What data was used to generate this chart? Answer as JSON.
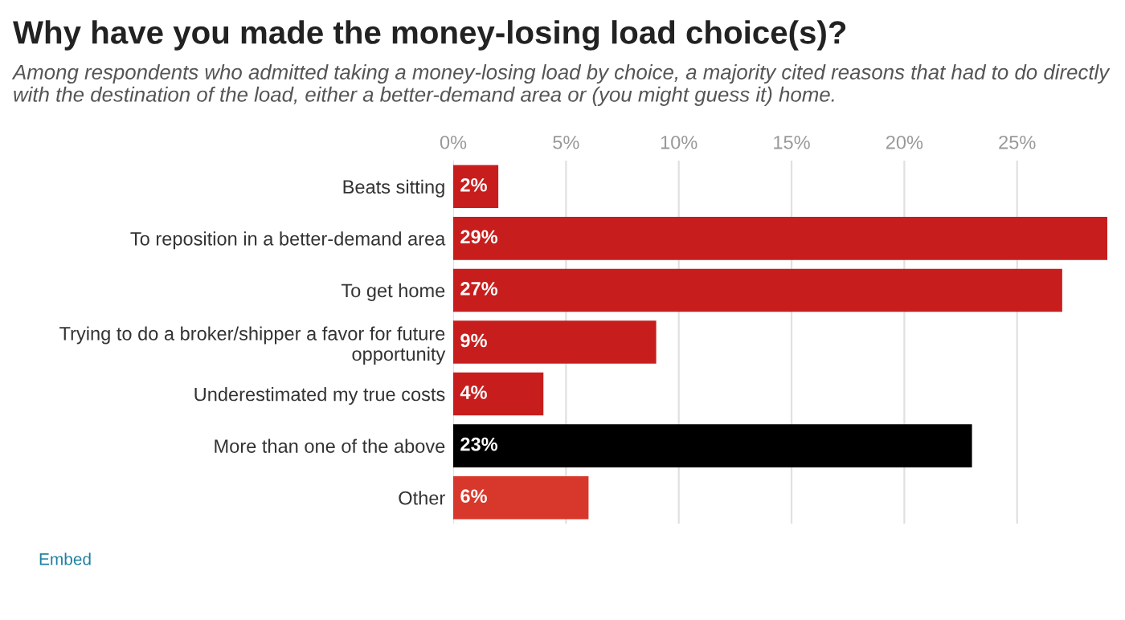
{
  "chart_data": {
    "type": "bar",
    "orientation": "horizontal",
    "title": "Why have you made the money-losing load choice(s)?",
    "subtitle": "Among respondents who admitted taking a money-losing load by choice, a majority cited reasons that had to do directly with the destination of the load, either a better-demand area or (you might guess it) home.",
    "categories": [
      "Beats sitting",
      "To reposition in a better-demand area",
      "To get home",
      "Trying to do a broker/shipper a favor for future\nopportunity",
      "Underestimated my true costs",
      "More than one of the above",
      "Other"
    ],
    "values": [
      2,
      29,
      27,
      9,
      4,
      23,
      6
    ],
    "value_labels": [
      "2%",
      "29%",
      "27%",
      "9%",
      "4%",
      "23%",
      "6%"
    ],
    "colors": [
      "#c71e1d",
      "#c71e1d",
      "#c71e1d",
      "#c71e1d",
      "#c71e1d",
      "#000000",
      "#d8382b"
    ],
    "xlim": [
      0,
      29
    ],
    "xticks": [
      {
        "value": 0,
        "label": "0%"
      },
      {
        "value": 5,
        "label": "5%"
      },
      {
        "value": 10,
        "label": "10%"
      },
      {
        "value": 15,
        "label": "15%"
      },
      {
        "value": 20,
        "label": "20%"
      },
      {
        "value": 25,
        "label": "25%"
      }
    ],
    "grid": "x",
    "annotations": [
      "Embed"
    ]
  }
}
